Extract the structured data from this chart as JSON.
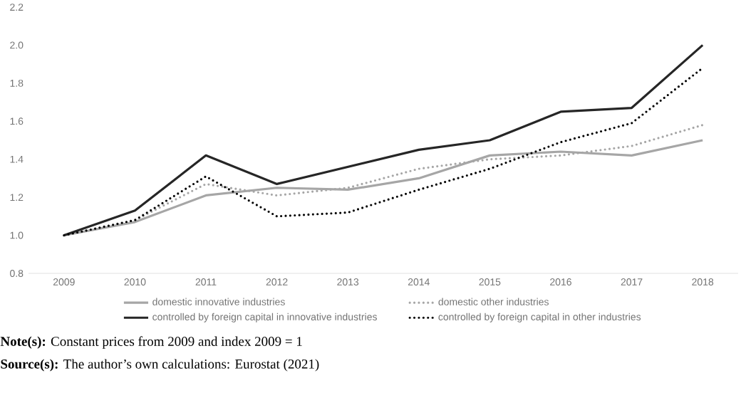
{
  "chart_data": {
    "type": "line",
    "categories": [
      "2009",
      "2010",
      "2011",
      "2012",
      "2013",
      "2014",
      "2015",
      "2016",
      "2017",
      "2018"
    ],
    "series": [
      {
        "name": "domestic innovative industries",
        "color": "#a6a6a6",
        "line_style": "solid",
        "values": [
          1.0,
          1.07,
          1.21,
          1.25,
          1.24,
          1.3,
          1.42,
          1.44,
          1.42,
          1.5
        ]
      },
      {
        "name": "domestic other industries",
        "color": "#a6a6a6",
        "line_style": "dotted",
        "values": [
          1.0,
          1.08,
          1.27,
          1.21,
          1.25,
          1.35,
          1.4,
          1.42,
          1.47,
          1.58
        ]
      },
      {
        "name": "controlled by foreign capital in innovative industries",
        "color": "#262626",
        "line_style": "solid",
        "values": [
          1.0,
          1.13,
          1.42,
          1.27,
          1.36,
          1.45,
          1.5,
          1.65,
          1.67,
          2.0
        ]
      },
      {
        "name": "controlled by foreign capital in other industries",
        "color": "#000000",
        "line_style": "dotted",
        "values": [
          1.0,
          1.08,
          1.31,
          1.1,
          1.12,
          1.24,
          1.35,
          1.49,
          1.59,
          1.88
        ]
      }
    ],
    "ylim": [
      0.8,
      2.2
    ],
    "yticks": [
      0.8,
      {
        "value": 1,
        "label": "1.0"
      },
      1.2,
      1.4,
      1.6,
      1.8,
      {
        "value": 2,
        "label": "2.0"
      },
      2.2
    ],
    "grid": false,
    "legend": "bottom",
    "annotations": [
      "**Note(s):** Constant prices from 2009 and index 2009 = 1",
      "**Source(s):** The author’s own calculations: Eurostat (2021)"
    ]
  }
}
